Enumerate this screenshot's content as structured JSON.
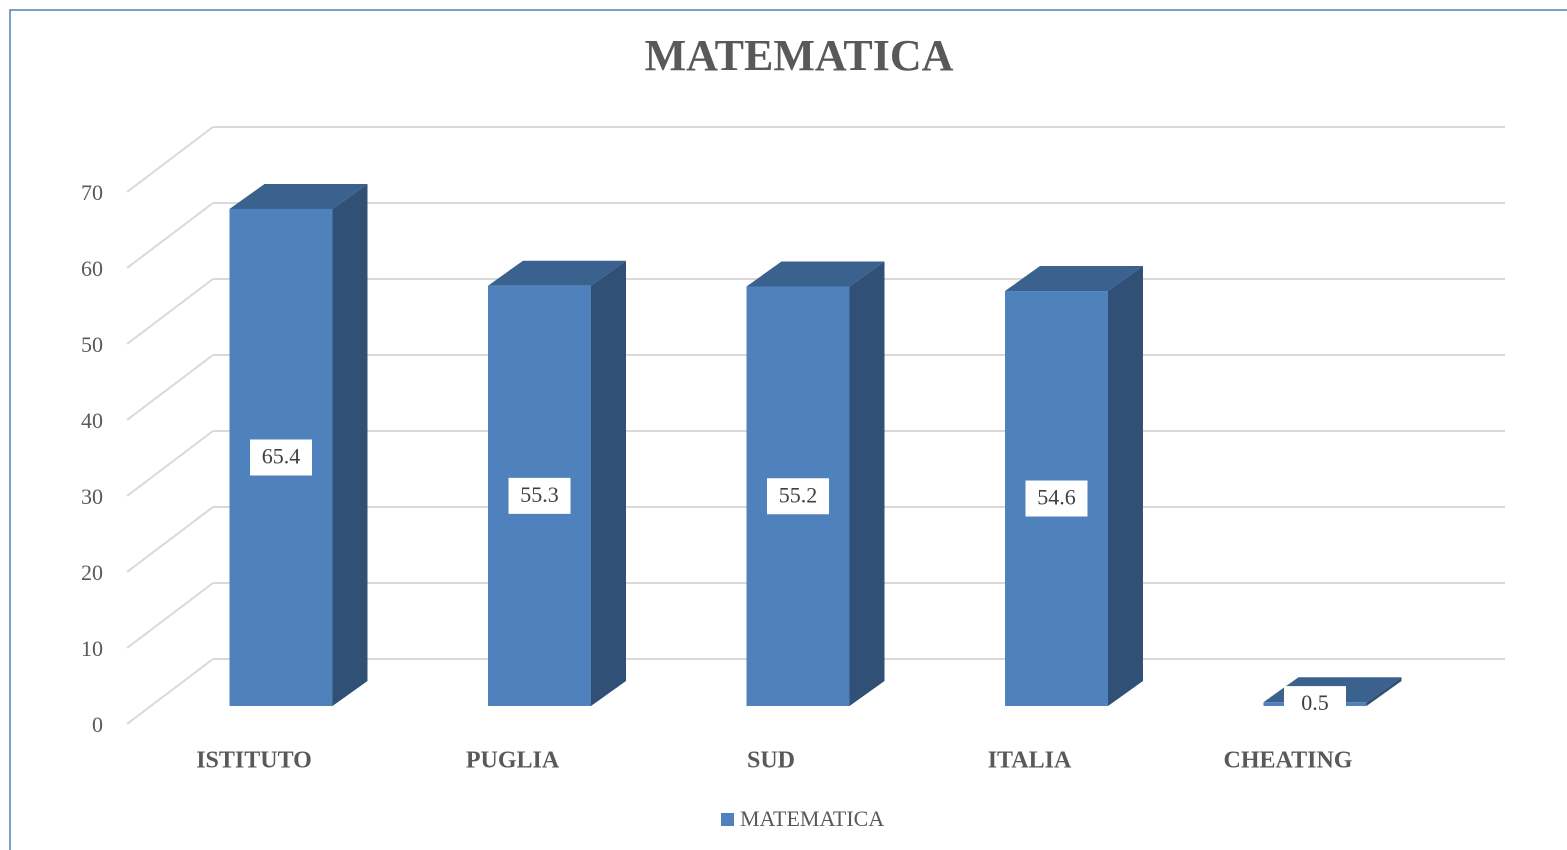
{
  "chart_data": {
    "type": "bar3d",
    "title": "MATEMATICA",
    "categories": [
      "ISTITUTO",
      "PUGLIA",
      "SUD",
      "ITALIA",
      "CHEATING"
    ],
    "series": [
      {
        "name": "MATEMATICA",
        "color": "#4f81bd",
        "values": [
          65.4,
          55.3,
          55.2,
          54.6,
          0.5
        ]
      }
    ],
    "ylim": [
      0,
      70
    ],
    "yticks": [
      0,
      10,
      20,
      30,
      40,
      50,
      60,
      70
    ],
    "grid": true,
    "legend": "bottom",
    "data_labels": true
  }
}
